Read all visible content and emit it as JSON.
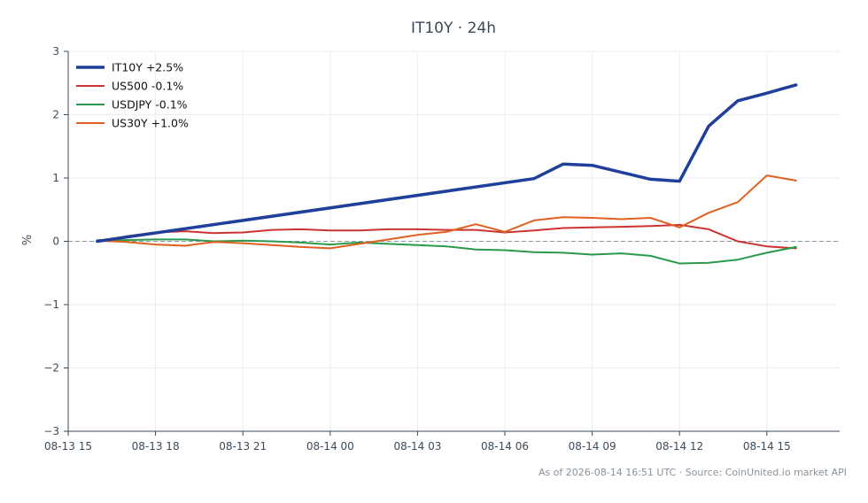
{
  "chart_data": {
    "type": "line",
    "title": "IT10Y · 24h",
    "ylabel": "%",
    "xlabel": "",
    "ylim": [
      -3,
      3
    ],
    "xlim": [
      0,
      26.5
    ],
    "x_ticks": [
      {
        "x": 0,
        "label": "08-13 15"
      },
      {
        "x": 3,
        "label": "08-13 18"
      },
      {
        "x": 6,
        "label": "08-13 21"
      },
      {
        "x": 9,
        "label": "08-14 00"
      },
      {
        "x": 12,
        "label": "08-14 03"
      },
      {
        "x": 15,
        "label": "08-14 06"
      },
      {
        "x": 18,
        "label": "08-14 09"
      },
      {
        "x": 21,
        "label": "08-14 12"
      },
      {
        "x": 24,
        "label": "08-14 15"
      }
    ],
    "y_ticks": [
      {
        "y": 3,
        "label": "3"
      },
      {
        "y": 2,
        "label": "2"
      },
      {
        "y": 1,
        "label": "1"
      },
      {
        "y": 0,
        "label": "0"
      },
      {
        "y": -1,
        "label": "−1"
      },
      {
        "y": -2,
        "label": "−2"
      },
      {
        "y": -3,
        "label": "−3"
      }
    ],
    "grid": true,
    "zero_line": true,
    "legend_position": "top-left",
    "series": [
      {
        "name": "IT10Y +2.5%",
        "color": "#1f3f9a",
        "width": 3.5,
        "points": [
          [
            1,
            0.0
          ],
          [
            16,
            0.99
          ],
          [
            17,
            1.22
          ],
          [
            18,
            1.2
          ],
          [
            20,
            0.98
          ],
          [
            21,
            0.95
          ],
          [
            22,
            1.82
          ],
          [
            23,
            2.22
          ],
          [
            24,
            2.34
          ],
          [
            25,
            2.47
          ]
        ]
      },
      {
        "name": "US500 -0.1%",
        "color": "#cc3333",
        "width": 2,
        "points": [
          [
            1,
            0.0
          ],
          [
            2,
            0.08
          ],
          [
            3,
            0.14
          ],
          [
            4,
            0.16
          ],
          [
            5,
            0.13
          ],
          [
            6,
            0.14
          ],
          [
            7,
            0.18
          ],
          [
            8,
            0.19
          ],
          [
            9,
            0.17
          ],
          [
            10,
            0.17
          ],
          [
            11,
            0.19
          ],
          [
            12,
            0.19
          ],
          [
            13,
            0.18
          ],
          [
            14,
            0.18
          ],
          [
            15,
            0.14
          ],
          [
            16,
            0.17
          ],
          [
            17,
            0.21
          ],
          [
            18,
            0.22
          ],
          [
            19,
            0.23
          ],
          [
            20,
            0.24
          ],
          [
            21,
            0.26
          ],
          [
            22,
            0.19
          ],
          [
            23,
            0.0
          ],
          [
            24,
            -0.08
          ],
          [
            25,
            -0.11
          ]
        ]
      },
      {
        "name": "USDJPY -0.1%",
        "color": "#2a9a4a",
        "width": 2,
        "points": [
          [
            1,
            0.02
          ],
          [
            2,
            0.02
          ],
          [
            3,
            0.03
          ],
          [
            4,
            0.03
          ],
          [
            5,
            0.0
          ],
          [
            6,
            0.01
          ],
          [
            7,
            0.0
          ],
          [
            8,
            -0.02
          ],
          [
            9,
            -0.05
          ],
          [
            10,
            -0.02
          ],
          [
            11,
            -0.04
          ],
          [
            12,
            -0.06
          ],
          [
            13,
            -0.08
          ],
          [
            14,
            -0.13
          ],
          [
            15,
            -0.14
          ],
          [
            16,
            -0.17
          ],
          [
            17,
            -0.18
          ],
          [
            18,
            -0.21
          ],
          [
            19,
            -0.19
          ],
          [
            20,
            -0.23
          ],
          [
            21,
            -0.35
          ],
          [
            22,
            -0.34
          ],
          [
            23,
            -0.29
          ],
          [
            24,
            -0.18
          ],
          [
            25,
            -0.09
          ]
        ]
      },
      {
        "name": "US30Y +1.0%",
        "color": "#e06020",
        "width": 2,
        "points": [
          [
            1,
            0.01
          ],
          [
            2,
            -0.01
          ],
          [
            3,
            -0.05
          ],
          [
            4,
            -0.07
          ],
          [
            5,
            -0.01
          ],
          [
            6,
            -0.03
          ],
          [
            7,
            -0.06
          ],
          [
            8,
            -0.09
          ],
          [
            9,
            -0.11
          ],
          [
            10,
            -0.04
          ],
          [
            11,
            0.03
          ],
          [
            12,
            0.1
          ],
          [
            13,
            0.15
          ],
          [
            14,
            0.27
          ],
          [
            15,
            0.15
          ],
          [
            16,
            0.33
          ],
          [
            17,
            0.38
          ],
          [
            18,
            0.37
          ],
          [
            19,
            0.35
          ],
          [
            20,
            0.37
          ],
          [
            21,
            0.22
          ],
          [
            22,
            0.45
          ],
          [
            23,
            0.62
          ],
          [
            24,
            1.04
          ],
          [
            25,
            0.96
          ]
        ]
      }
    ]
  },
  "footer": "As of 2026-08-14 16:51 UTC · Source: CoinUnited.io market API"
}
